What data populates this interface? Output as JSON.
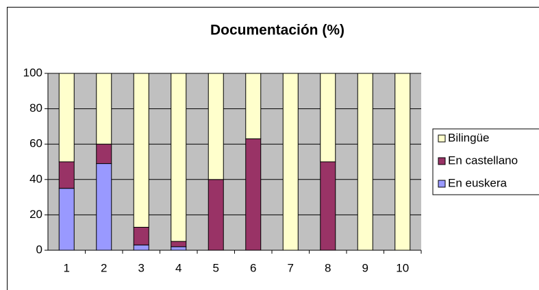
{
  "chart_data": {
    "type": "stacked_bar",
    "title": "Documentación (%)",
    "categories": [
      "1",
      "2",
      "3",
      "4",
      "5",
      "6",
      "7",
      "8",
      "9",
      "10"
    ],
    "series": [
      {
        "name": "En euskera",
        "color": "#9999ff",
        "values": [
          35,
          49,
          3,
          2,
          0,
          0,
          0,
          0,
          0,
          0
        ]
      },
      {
        "name": "En castellano",
        "color": "#993366",
        "values": [
          15,
          11,
          10,
          3,
          40,
          63,
          0,
          50,
          0,
          0
        ]
      },
      {
        "name": "Bilingüe",
        "color": "#ffffcc",
        "values": [
          50,
          40,
          87,
          95,
          60,
          37,
          100,
          50,
          100,
          100
        ]
      }
    ],
    "ylim": [
      0,
      100
    ],
    "yticks": [
      0,
      20,
      40,
      60,
      80,
      100
    ],
    "grid": true,
    "legend": "right",
    "plot_background": "#c0c0c0"
  }
}
